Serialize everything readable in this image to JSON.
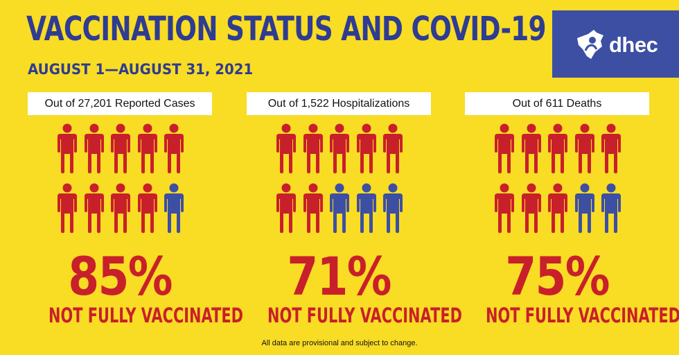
{
  "header": {
    "title": "VACCINATION STATUS AND COVID-19",
    "subtitle": "AUGUST 1—AUGUST 31, 2021"
  },
  "logo": {
    "text": "dhec",
    "icon": "dhec-state-logo-icon"
  },
  "colors": {
    "background": "#f9dc24",
    "title_blue": "#2e3c92",
    "unvaccinated_red": "#c8202a",
    "vaccinated_blue": "#3d4fa3"
  },
  "panels": [
    {
      "label": "Out of 27,201 Reported Cases",
      "percent": "85%",
      "caption": "NOT FULLY VACCINATED",
      "red_count": 9,
      "total": 10
    },
    {
      "label": "Out of 1,522 Hospitalizations",
      "percent": "71%",
      "caption": "NOT FULLY VACCINATED",
      "red_count": 7,
      "total": 10
    },
    {
      "label": "Out of 611 Deaths",
      "percent": "75%",
      "caption": "NOT FULLY VACCINATED",
      "red_count": 8,
      "total": 10
    }
  ],
  "footnote": "All data are provisional and subject to change."
}
